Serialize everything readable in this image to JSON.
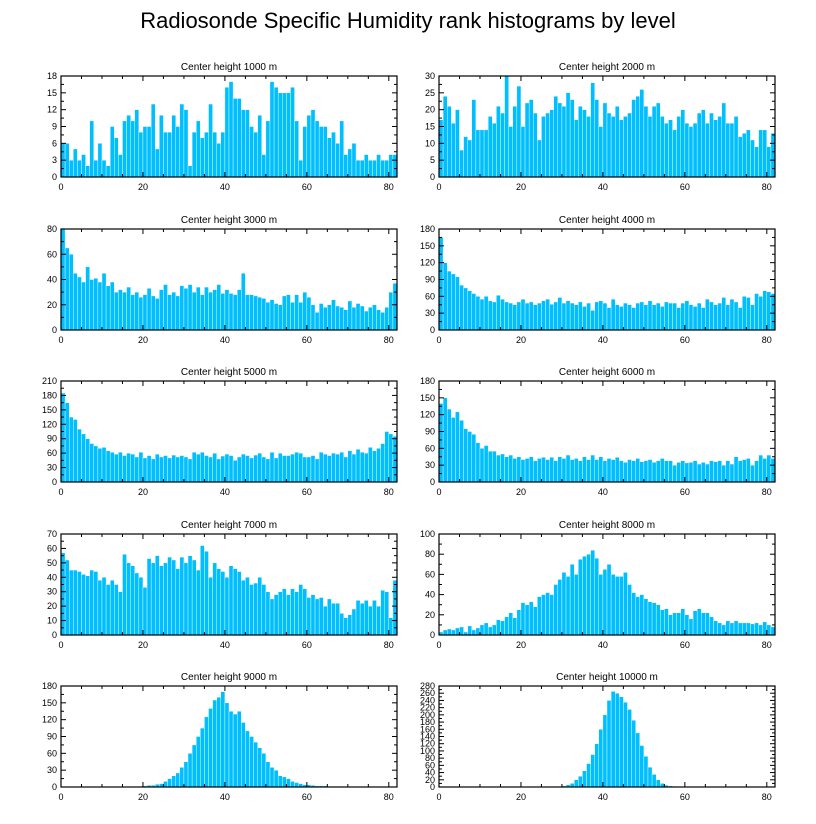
{
  "title": "Radiosonde Specific Humidity rank histograms by level",
  "colors": {
    "bar": "#00bfff",
    "bar_edge": "#ffffff",
    "axis": "#000000"
  },
  "chart_data": [
    {
      "type": "bar",
      "title": "Center height 1000 m",
      "xlim": [
        0,
        82
      ],
      "ylim": [
        0,
        18
      ],
      "xticks": [
        0,
        20,
        40,
        60,
        80
      ],
      "yticks": [
        0,
        3,
        6,
        9,
        12,
        15,
        18
      ],
      "values": [
        6,
        6,
        3,
        5,
        3,
        4,
        2,
        10,
        3,
        6,
        3,
        2,
        9,
        7,
        4,
        10,
        11,
        10,
        12,
        8,
        9,
        9,
        13,
        5,
        11,
        8,
        8,
        11,
        9,
        13,
        12,
        2,
        8,
        10,
        7,
        8,
        13,
        8,
        6,
        8,
        16,
        17,
        14,
        14,
        12,
        12,
        9,
        8,
        11,
        4,
        10,
        17,
        16,
        15,
        15,
        15,
        16,
        10,
        3,
        9,
        11,
        12,
        10,
        9,
        9,
        7,
        8,
        6,
        10,
        4,
        5,
        6,
        3,
        3,
        4,
        3,
        3,
        4,
        3,
        3,
        4,
        4
      ]
    },
    {
      "type": "bar",
      "title": "Center height 2000 m",
      "xlim": [
        0,
        82
      ],
      "ylim": [
        0,
        30
      ],
      "xticks": [
        0,
        20,
        40,
        60,
        80
      ],
      "yticks": [
        0,
        5,
        10,
        15,
        20,
        25,
        30
      ],
      "values": [
        17,
        24,
        21,
        16,
        20,
        8,
        12,
        11,
        23,
        14,
        14,
        14,
        18,
        16,
        21,
        19,
        30,
        15,
        21,
        27,
        15,
        22,
        23,
        19,
        11,
        18,
        19,
        20,
        24,
        22,
        21,
        25,
        23,
        17,
        21,
        20,
        18,
        28,
        23,
        15,
        22,
        19,
        18,
        21,
        17,
        18,
        19,
        23,
        24,
        26,
        21,
        18,
        21,
        22,
        18,
        16,
        17,
        14,
        18,
        20,
        16,
        15,
        16,
        19,
        20,
        16,
        19,
        17,
        18,
        22,
        16,
        16,
        18,
        12,
        13,
        14,
        11,
        9,
        14,
        14,
        9,
        13
      ]
    },
    {
      "type": "bar",
      "title": "Center height 3000 m",
      "xlim": [
        0,
        82
      ],
      "ylim": [
        0,
        80
      ],
      "xticks": [
        0,
        20,
        40,
        60,
        80
      ],
      "yticks": [
        0,
        20,
        40,
        60,
        80
      ],
      "values": [
        80,
        65,
        60,
        45,
        42,
        38,
        50,
        40,
        41,
        38,
        45,
        35,
        38,
        30,
        32,
        30,
        34,
        28,
        30,
        26,
        28,
        33,
        27,
        25,
        32,
        36,
        28,
        30,
        27,
        35,
        33,
        36,
        30,
        34,
        28,
        34,
        30,
        32,
        36,
        29,
        32,
        29,
        28,
        32,
        45,
        28,
        28,
        27,
        26,
        25,
        22,
        24,
        21,
        20,
        27,
        28,
        22,
        28,
        22,
        30,
        26,
        20,
        14,
        21,
        18,
        20,
        24,
        19,
        18,
        16,
        23,
        18,
        21,
        19,
        15,
        18,
        20,
        16,
        14,
        18,
        30,
        37
      ]
    },
    {
      "type": "bar",
      "title": "Center height 4000 m",
      "xlim": [
        0,
        82
      ],
      "ylim": [
        0,
        180
      ],
      "xticks": [
        0,
        20,
        40,
        60,
        80
      ],
      "yticks": [
        0,
        30,
        60,
        90,
        120,
        150,
        180
      ],
      "values": [
        165,
        120,
        105,
        100,
        95,
        80,
        75,
        70,
        65,
        60,
        55,
        60,
        52,
        50,
        62,
        55,
        50,
        48,
        45,
        50,
        55,
        48,
        50,
        45,
        48,
        52,
        55,
        46,
        50,
        58,
        48,
        52,
        48,
        45,
        50,
        42,
        48,
        35,
        50,
        52,
        48,
        40,
        55,
        45,
        42,
        48,
        45,
        40,
        48,
        50,
        45,
        52,
        45,
        48,
        42,
        50,
        48,
        48,
        40,
        48,
        52,
        45,
        42,
        48,
        40,
        55,
        50,
        45,
        48,
        58,
        45,
        55,
        50,
        40,
        60,
        58,
        45,
        65,
        60,
        70,
        68,
        65
      ]
    },
    {
      "type": "bar",
      "title": "Center height 5000 m",
      "xlim": [
        0,
        82
      ],
      "ylim": [
        0,
        210
      ],
      "xticks": [
        0,
        20,
        40,
        60,
        80
      ],
      "yticks": [
        0,
        30,
        60,
        90,
        120,
        150,
        180,
        210
      ],
      "values": [
        185,
        165,
        135,
        130,
        110,
        100,
        90,
        80,
        75,
        70,
        72,
        65,
        62,
        58,
        62,
        55,
        60,
        58,
        52,
        62,
        50,
        55,
        48,
        58,
        52,
        55,
        50,
        56,
        52,
        55,
        52,
        48,
        62,
        58,
        62,
        55,
        52,
        60,
        48,
        54,
        58,
        55,
        45,
        52,
        58,
        55,
        50,
        56,
        60,
        52,
        48,
        62,
        50,
        60,
        55,
        55,
        58,
        62,
        60,
        52,
        52,
        55,
        48,
        62,
        58,
        55,
        60,
        58,
        62,
        52,
        65,
        58,
        68,
        62,
        60,
        72,
        65,
        70,
        80,
        105,
        100,
        95
      ]
    },
    {
      "type": "bar",
      "title": "Center height 6000 m",
      "xlim": [
        0,
        82
      ],
      "ylim": [
        0,
        180
      ],
      "xticks": [
        0,
        20,
        40,
        60,
        80
      ],
      "yticks": [
        0,
        30,
        60,
        90,
        120,
        150,
        180
      ],
      "values": [
        140,
        150,
        130,
        115,
        125,
        110,
        95,
        90,
        85,
        70,
        60,
        65,
        55,
        55,
        48,
        50,
        45,
        48,
        42,
        45,
        40,
        42,
        45,
        38,
        42,
        44,
        40,
        44,
        38,
        45,
        42,
        48,
        40,
        42,
        38,
        45,
        40,
        48,
        40,
        45,
        38,
        42,
        40,
        44,
        38,
        35,
        40,
        38,
        42,
        36,
        38,
        40,
        35,
        38,
        42,
        38,
        38,
        30,
        35,
        38,
        34,
        35,
        38,
        32,
        35,
        32,
        38,
        36,
        38,
        30,
        38,
        32,
        45,
        38,
        40,
        42,
        30,
        38,
        48,
        42,
        48,
        42
      ]
    },
    {
      "type": "bar",
      "title": "Center height 7000 m",
      "xlim": [
        0,
        82
      ],
      "ylim": [
        0,
        70
      ],
      "xticks": [
        0,
        20,
        40,
        60,
        80
      ],
      "yticks": [
        0,
        10,
        20,
        30,
        40,
        50,
        60,
        70
      ],
      "values": [
        57,
        52,
        45,
        45,
        44,
        42,
        41,
        45,
        44,
        38,
        40,
        35,
        38,
        35,
        30,
        56,
        50,
        48,
        43,
        40,
        33,
        53,
        50,
        55,
        48,
        50,
        54,
        52,
        46,
        54,
        50,
        55,
        52,
        45,
        62,
        58,
        40,
        50,
        46,
        44,
        40,
        48,
        46,
        44,
        38,
        40,
        35,
        36,
        40,
        35,
        30,
        25,
        28,
        30,
        32,
        28,
        32,
        30,
        35,
        32,
        26,
        28,
        25,
        26,
        20,
        25,
        22,
        22,
        15,
        12,
        14,
        18,
        24,
        22,
        24,
        20,
        24,
        20,
        31,
        30,
        12,
        38
      ]
    },
    {
      "type": "bar",
      "title": "Center height 8000 m",
      "xlim": [
        0,
        82
      ],
      "ylim": [
        0,
        100
      ],
      "xticks": [
        0,
        20,
        40,
        60,
        80
      ],
      "yticks": [
        0,
        20,
        40,
        60,
        80,
        100
      ],
      "values": [
        3,
        5,
        6,
        5,
        7,
        8,
        3,
        9,
        5,
        7,
        10,
        12,
        8,
        10,
        15,
        14,
        18,
        22,
        17,
        25,
        32,
        30,
        33,
        28,
        38,
        40,
        42,
        40,
        50,
        55,
        62,
        58,
        70,
        60,
        75,
        78,
        80,
        84,
        76,
        60,
        65,
        70,
        60,
        58,
        58,
        62,
        50,
        42,
        38,
        40,
        36,
        33,
        32,
        30,
        25,
        26,
        20,
        22,
        22,
        26,
        20,
        16,
        24,
        26,
        22,
        22,
        18,
        14,
        12,
        10,
        14,
        12,
        14,
        12,
        12,
        12,
        11,
        12,
        10,
        13,
        10,
        8
      ]
    },
    {
      "type": "bar",
      "title": "Center height 9000 m",
      "xlim": [
        0,
        82
      ],
      "ylim": [
        0,
        180
      ],
      "xticks": [
        0,
        20,
        40,
        60,
        80
      ],
      "yticks": [
        0,
        30,
        60,
        90,
        120,
        150,
        180
      ],
      "values": [
        0,
        0,
        0,
        0,
        0,
        0,
        0,
        0,
        0,
        0,
        0,
        0,
        0,
        0,
        0,
        0,
        0,
        0,
        0,
        1,
        2,
        3,
        3,
        5,
        6,
        10,
        15,
        20,
        25,
        35,
        45,
        60,
        75,
        90,
        105,
        125,
        140,
        155,
        160,
        170,
        150,
        135,
        130,
        135,
        115,
        100,
        90,
        80,
        70,
        60,
        45,
        35,
        30,
        20,
        18,
        15,
        10,
        8,
        6,
        4,
        4,
        3,
        2,
        2,
        2,
        1,
        1,
        1,
        1,
        0,
        0,
        0,
        0,
        0,
        0,
        0,
        0,
        0,
        0,
        0,
        0,
        0
      ]
    },
    {
      "type": "bar",
      "title": "Center height 10000 m",
      "xlim": [
        0,
        82
      ],
      "ylim": [
        0,
        280
      ],
      "xticks": [
        0,
        20,
        40,
        60,
        80
      ],
      "yticks": [
        0,
        20,
        40,
        60,
        80,
        100,
        120,
        140,
        160,
        180,
        200,
        220,
        240,
        260,
        280
      ],
      "values": [
        0,
        0,
        0,
        0,
        0,
        0,
        0,
        0,
        0,
        0,
        0,
        0,
        0,
        0,
        0,
        0,
        0,
        0,
        0,
        0,
        0,
        0,
        0,
        0,
        0,
        0,
        0,
        0,
        1,
        2,
        3,
        6,
        10,
        20,
        30,
        45,
        65,
        90,
        120,
        160,
        200,
        240,
        265,
        260,
        250,
        235,
        215,
        185,
        150,
        115,
        85,
        55,
        35,
        20,
        10,
        5,
        3,
        2,
        1,
        1,
        0,
        0,
        0,
        0,
        0,
        0,
        0,
        0,
        0,
        0,
        0,
        0,
        0,
        0,
        0,
        0,
        0,
        0,
        0,
        0,
        0,
        0
      ]
    }
  ]
}
